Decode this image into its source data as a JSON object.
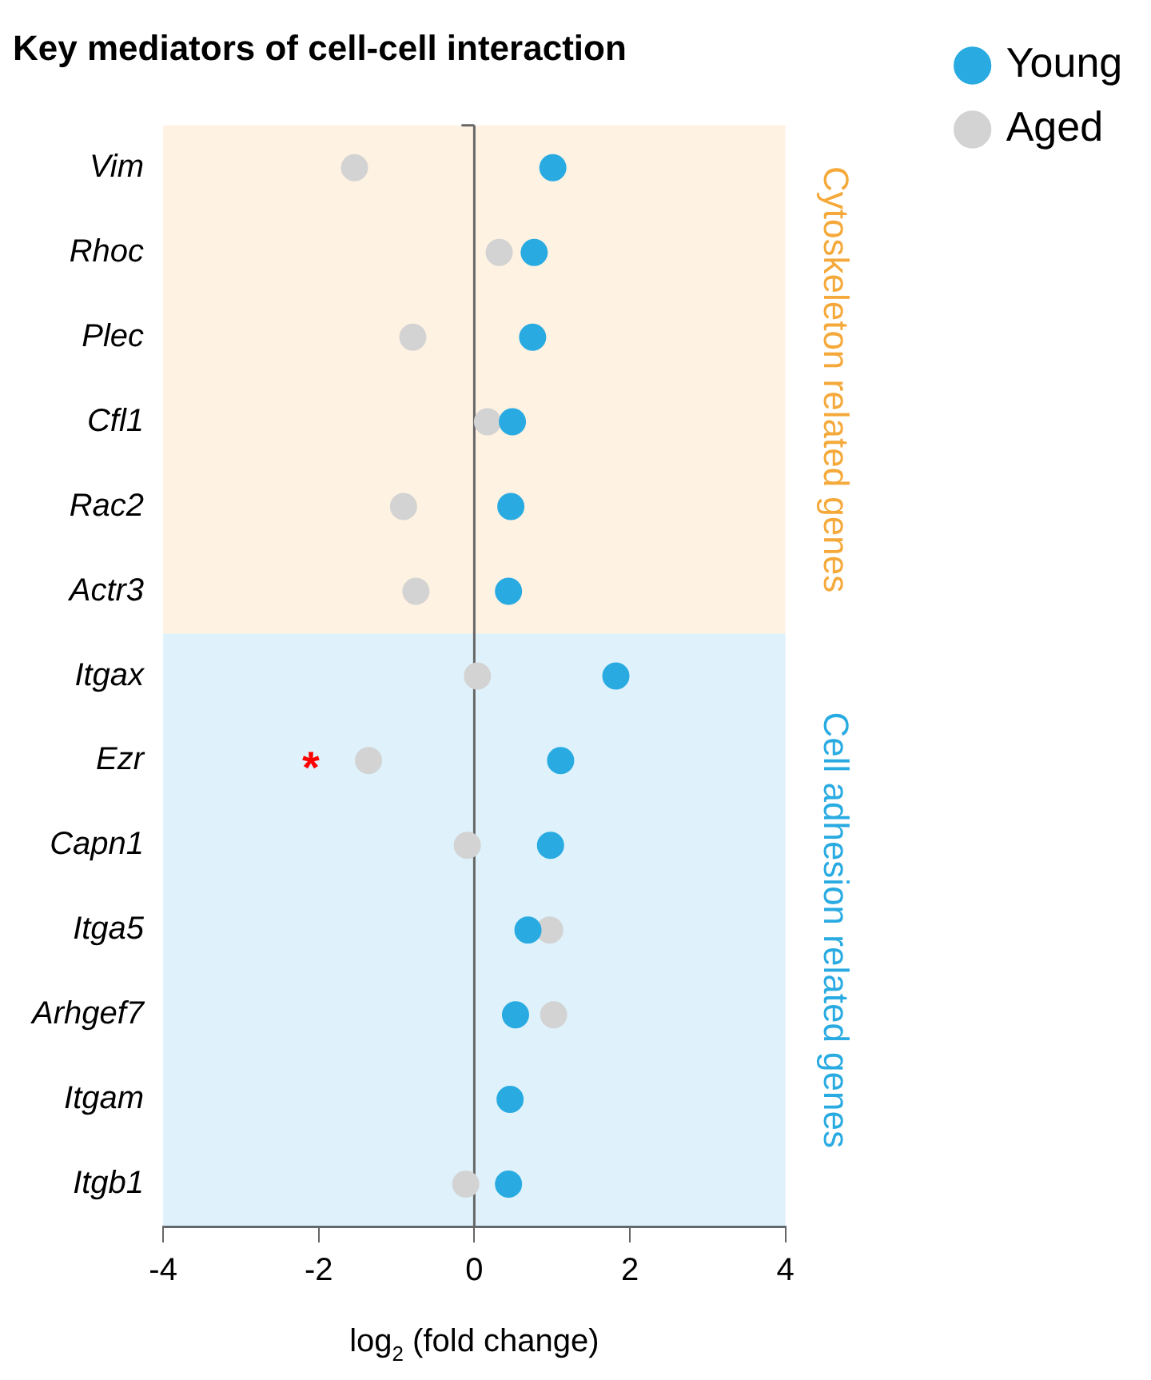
{
  "chart_data": {
    "type": "scatter",
    "title": "Key mediators of cell-cell interaction",
    "xlabel": "log$_{2}$ (fold change)",
    "categories": [
      "Vim",
      "Rhoc",
      "Plec",
      "Cfl1",
      "Rac2",
      "Actr3",
      "Itgax",
      "Ezr",
      "Capn1",
      "Itga5",
      "Arhgef7",
      "Itgam",
      "Itgb1"
    ],
    "series": [
      {
        "name": "Young",
        "color": "#29abe2",
        "values": [
          1.01,
          0.77,
          0.75,
          0.49,
          0.47,
          0.44,
          1.82,
          1.11,
          0.98,
          0.69,
          0.53,
          0.46,
          0.44
        ]
      },
      {
        "name": "Aged",
        "color": "#d3d3d3",
        "values": [
          -1.54,
          0.32,
          -0.79,
          0.17,
          -0.91,
          -0.75,
          0.04,
          -1.36,
          -0.09,
          0.97,
          1.02,
          null,
          -0.11
        ]
      }
    ],
    "orientation": "horizontal",
    "xlim": [
      -4,
      4
    ],
    "xticks": [
      -4,
      -2,
      0,
      2,
      4
    ],
    "ref_lines": [
      {
        "axis": "x",
        "value": 0,
        "color": "#666666"
      }
    ],
    "bands": [
      {
        "axis": "y",
        "from": "Vim",
        "to": "Actr3",
        "label": "Cytoskeleton related genes",
        "color": "#f5a93b"
      },
      {
        "axis": "y",
        "from": "Itgax",
        "to": "Itgb1",
        "label": "Cell adhesion related genes",
        "color": "#29abe2"
      }
    ],
    "annotations": [
      {
        "text": "*",
        "x": -1.36,
        "y": "Ezr"
      }
    ],
    "marker": "circle",
    "grid": false,
    "legend": "top right"
  }
}
